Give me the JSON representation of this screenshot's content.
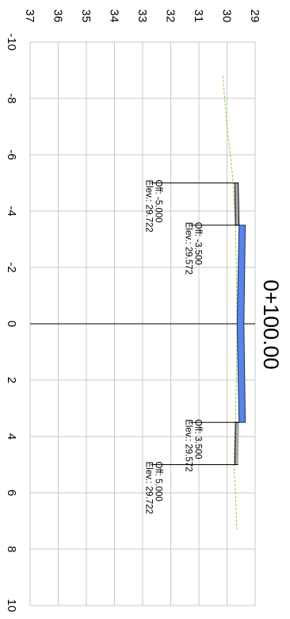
{
  "chart_data": {
    "type": "line",
    "title": "0+100.00",
    "xlabel": "",
    "ylabel": "",
    "xlim": [
      -10,
      10
    ],
    "ylim": [
      29,
      37
    ],
    "x_ticks": [
      "-10",
      "-8",
      "-6",
      "-4",
      "-2",
      "0",
      "2",
      "4",
      "6",
      "8",
      "10"
    ],
    "y_ticks": [
      "29",
      "30",
      "31",
      "32",
      "33",
      "34",
      "35",
      "36",
      "37"
    ],
    "grid": true,
    "colors": {
      "grid": "#c8c8c8",
      "ground": "#7fcf3f",
      "pavement": "#5a83e6",
      "shoulder": "#a8a8a8",
      "outline": "#000000"
    },
    "series": [
      {
        "x": [
          -8.8,
          -7,
          -6,
          -5.2,
          -4.2,
          -3.6,
          0,
          3.6,
          4.2,
          5.2,
          6,
          7.3
        ],
        "y": [
          30.15,
          30.0,
          29.88,
          29.8,
          29.74,
          29.7,
          29.64,
          29.7,
          29.74,
          29.75,
          29.7,
          29.65
        ]
      },
      {
        "x": [
          -3.5,
          0,
          3.5,
          3.5,
          0,
          -3.5
        ],
        "y": [
          29.572,
          29.64,
          29.572,
          29.35,
          29.4,
          29.35
        ]
      },
      {
        "x": [
          -5,
          -5,
          -3.5,
          -3.5,
          -5
        ],
        "y": [
          29.722,
          29.6,
          29.572,
          29.7,
          29.722
        ]
      },
      {
        "x": [
          3.5,
          3.5,
          5,
          5
        ],
        "y": [
          29.572,
          29.7,
          29.722,
          29.6
        ]
      }
    ],
    "annotations": [
      {
        "x": -5.0,
        "y": 29.722,
        "offset_text": "Off: -5.000",
        "elev_text": "Elev.: 29.722",
        "text_y": 32.7
      },
      {
        "x": -3.5,
        "y": 29.572,
        "offset_text": "Off: -3.500",
        "elev_text": "Elev.: 29.572",
        "text_y": 31.3
      },
      {
        "x": 3.5,
        "y": 29.572,
        "offset_text": "Off: 3.500",
        "elev_text": "Elev.: 29.572",
        "text_y": 31.3
      },
      {
        "x": 5.0,
        "y": 29.722,
        "offset_text": "Off: 5.000",
        "elev_text": "Elev.: 29.722",
        "text_y": 32.7
      }
    ]
  }
}
